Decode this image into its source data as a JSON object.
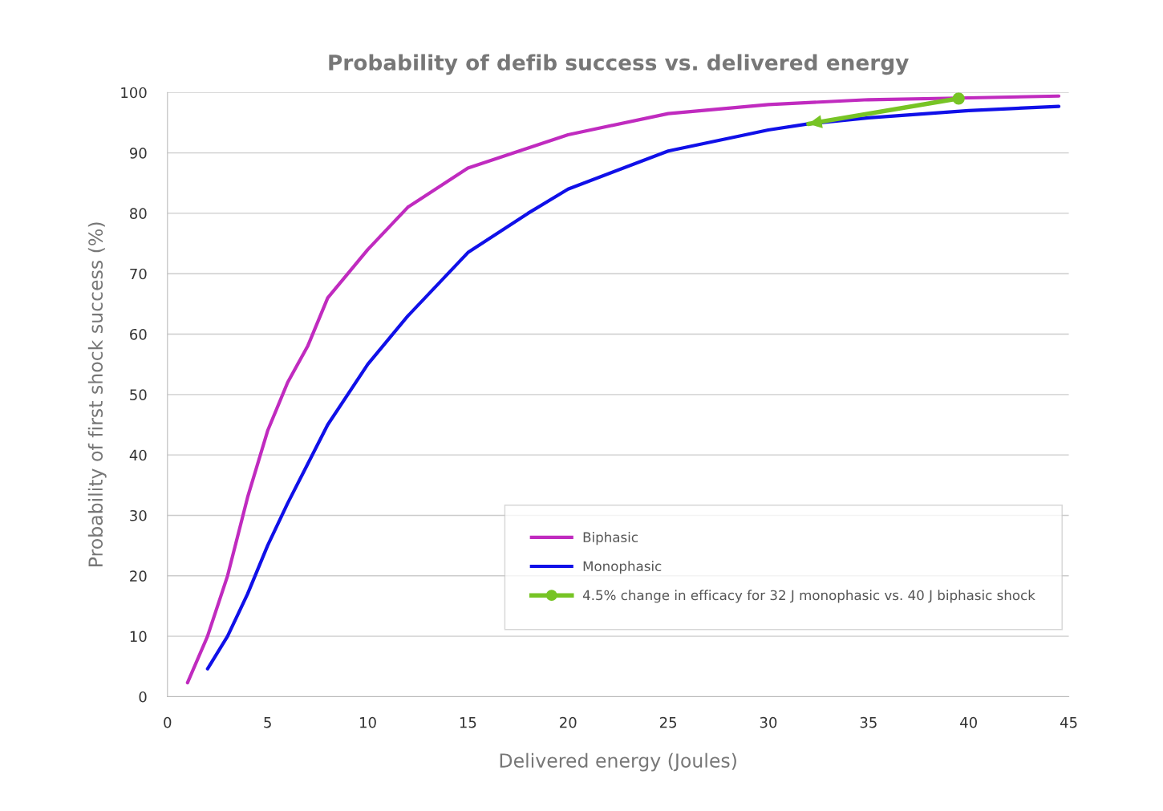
{
  "chart_data": {
    "type": "line",
    "title": "Probability of defib success vs. delivered energy",
    "xlabel": "Delivered energy (Joules)",
    "ylabel": "Probability of first shock success (%)",
    "xlim": [
      0,
      45
    ],
    "xticks": [
      0,
      5,
      10,
      15,
      20,
      25,
      30,
      35,
      40,
      45
    ],
    "ylim": [
      0,
      100
    ],
    "yticks": [
      0,
      10,
      20,
      30,
      40,
      50,
      60,
      70,
      80,
      90,
      100
    ],
    "grid": "y",
    "legend": "bottom right",
    "line_style": "solid",
    "series": [
      {
        "name": "Biphasic",
        "color": "#c02bbf",
        "x": [
          1,
          2,
          3,
          4,
          5,
          6,
          7,
          8,
          10,
          12,
          15,
          20,
          25,
          30,
          35,
          40,
          44.5
        ],
        "values": [
          2.3,
          10,
          20,
          33,
          44,
          52,
          58,
          66,
          74,
          81,
          87.5,
          93,
          96.5,
          98,
          98.8,
          99.1,
          99.4
        ]
      },
      {
        "name": "Monophasic",
        "color": "#1010e8",
        "x": [
          2,
          3,
          4,
          5,
          6,
          7,
          8,
          10,
          12,
          15,
          18,
          20,
          25,
          30,
          32,
          35,
          40,
          44.5
        ],
        "values": [
          4.6,
          10,
          17,
          25,
          32,
          38.5,
          45,
          55,
          63,
          73.5,
          80,
          84,
          90.3,
          93.8,
          94.8,
          95.8,
          97,
          97.7
        ]
      },
      {
        "name": "4.5% change in efficacy for 32 J monophasic vs. 40 J biphasic shock",
        "color": "#77c425",
        "marker": "circle",
        "x": [
          39.5,
          32
        ],
        "values": [
          99,
          94.8
        ]
      }
    ]
  }
}
